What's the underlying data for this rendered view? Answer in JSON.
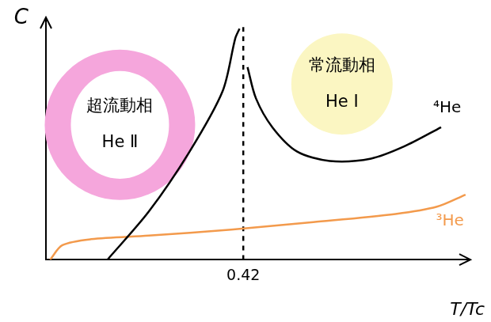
{
  "chart_data": {
    "type": "line",
    "x_label": "T/Tc",
    "y_label": "C",
    "xlim": [
      0,
      0.9
    ],
    "ylim": [
      0,
      1
    ],
    "xticks": [
      0.42
    ],
    "tick_labels": "x",
    "grid": false,
    "series": [
      {
        "name": "⁴He",
        "color": "#000000",
        "x": [
          0.131,
          0.219,
          0.306,
          0.376,
          0.403,
          0.412,
          0.42,
          0.429,
          0.447,
          0.482,
          0.534,
          0.604,
          0.692,
          0.762,
          0.841
        ],
        "values": [
          0,
          0.2,
          0.45,
          0.7,
          0.92,
          0.96,
          null,
          0.8,
          0.67,
          0.55,
          0.45,
          0.41,
          0.42,
          0.47,
          0.55
        ]
      },
      {
        "name": "³He",
        "color": "#f39a4c",
        "x": [
          0.009,
          0.035,
          0.096,
          0.219,
          0.394,
          0.569,
          0.744,
          0.832,
          0.893
        ],
        "values": [
          0,
          0.06,
          0.085,
          0.1,
          0.125,
          0.156,
          0.19,
          0.22,
          0.27
        ]
      },
      {
        "color": "#000000",
        "line_style": "dashed",
        "x": [
          0.42,
          0.42
        ],
        "values": [
          0,
          0.97
        ]
      }
    ],
    "annotations": [
      {
        "lines": [
          "超流動相",
          "He Ⅱ"
        ]
      },
      {
        "lines": [
          "常流動相",
          "He Ⅰ"
        ]
      }
    ]
  }
}
